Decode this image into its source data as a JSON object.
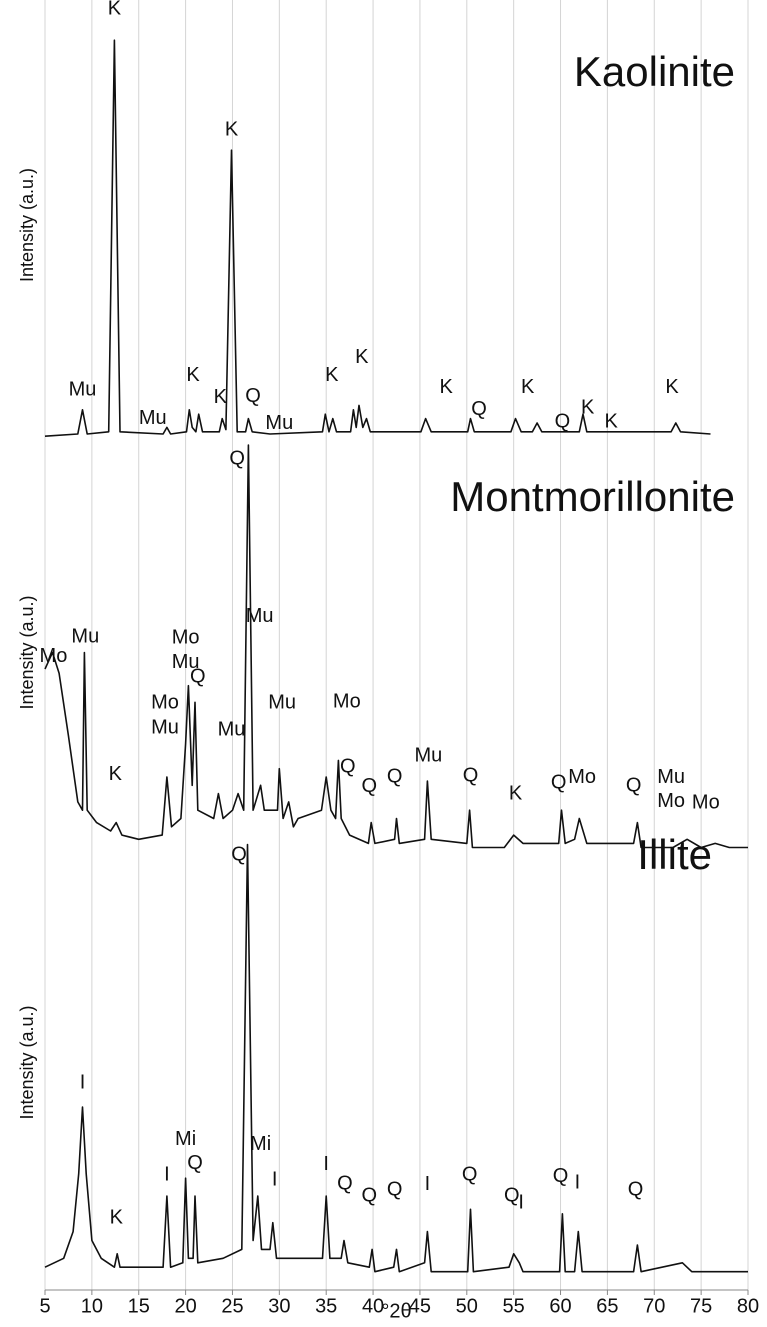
{
  "chart_data": [
    {
      "type": "line",
      "title": "Kaolinite",
      "ylabel": "Intensity (a.u.)",
      "color": "#111111",
      "xlim": [
        5,
        80
      ],
      "ylim": [
        0,
        100
      ],
      "x": [
        5,
        8.5,
        9,
        9.5,
        11.8,
        12.4,
        13,
        17.6,
        18,
        18.4,
        20.1,
        20.4,
        20.7,
        21.1,
        21.4,
        21.8,
        23.6,
        23.9,
        24.3,
        24.9,
        25.5,
        26.4,
        26.7,
        27.1,
        29,
        34.6,
        34.9,
        35.3,
        35.7,
        36.1,
        37.6,
        37.9,
        38.2,
        38.5,
        38.9,
        39.3,
        39.7,
        45.1,
        45.6,
        46.2,
        50.1,
        50.4,
        50.8,
        54.7,
        55.2,
        55.8,
        57,
        57.5,
        58,
        62,
        62.4,
        62.8,
        71.8,
        72.3,
        72.8,
        76
      ],
      "values": [
        2,
        2.5,
        8,
        2.5,
        3,
        92,
        3,
        2.5,
        4,
        2.5,
        3,
        8,
        4,
        3,
        7,
        3,
        3,
        6,
        3.5,
        67,
        3,
        3,
        6,
        3,
        2.5,
        3,
        7,
        3,
        6,
        3,
        3,
        8,
        4,
        9,
        4,
        6,
        3,
        3,
        6,
        3,
        3,
        6,
        3,
        3,
        6,
        3,
        3,
        5,
        3,
        3,
        7,
        3,
        3,
        5,
        3,
        2.5
      ],
      "annotations": [
        {
          "text": "K",
          "x": 12.4,
          "y": 99
        },
        {
          "text": "K",
          "x": 24.9,
          "y": 71.5
        },
        {
          "text": "Mu",
          "x": 9,
          "y": 12.5
        },
        {
          "text": "Mu",
          "x": 16.5,
          "y": 6
        },
        {
          "text": "K",
          "x": 20.8,
          "y": 15.7
        },
        {
          "text": "K",
          "x": 23.7,
          "y": 10.7
        },
        {
          "text": "Q",
          "x": 27.2,
          "y": 11
        },
        {
          "text": "Mu",
          "x": 30,
          "y": 4.8
        },
        {
          "text": "K",
          "x": 35.6,
          "y": 15.7
        },
        {
          "text": "K",
          "x": 38.8,
          "y": 19.8
        },
        {
          "text": "K",
          "x": 47.8,
          "y": 13
        },
        {
          "text": "Q",
          "x": 51.3,
          "y": 8
        },
        {
          "text": "K",
          "x": 56.5,
          "y": 13
        },
        {
          "text": "Q",
          "x": 60.2,
          "y": 5.2
        },
        {
          "text": "K",
          "x": 62.9,
          "y": 8.4
        },
        {
          "text": "K",
          "x": 65.4,
          "y": 5.2
        },
        {
          "text": "K",
          "x": 71.9,
          "y": 13
        }
      ]
    },
    {
      "type": "line",
      "title": "Montmorillonite",
      "ylabel": "Intensity (a.u.)",
      "color": "#111111",
      "xlim": [
        5,
        80
      ],
      "ylim": [
        0,
        100
      ],
      "x": [
        5,
        5.8,
        6.5,
        7.5,
        8.5,
        9,
        9.2,
        9.5,
        10.5,
        12,
        12.6,
        13.2,
        15,
        17.5,
        18,
        18.5,
        19.5,
        20,
        20.3,
        20.7,
        21,
        21.3,
        23,
        23.5,
        24,
        25,
        25.6,
        26.2,
        26.7,
        27.2,
        28,
        28.4,
        29.8,
        30,
        30.4,
        31,
        31.5,
        32,
        34.5,
        35,
        35.5,
        36,
        36.3,
        36.6,
        37.5,
        39.5,
        39.8,
        40.2,
        42.3,
        42.5,
        42.8,
        45.5,
        45.8,
        46.2,
        50,
        50.3,
        50.6,
        54,
        55,
        56,
        59.8,
        60.1,
        60.5,
        61.5,
        62,
        62.8,
        67.8,
        68.2,
        68.6,
        72,
        73.5,
        75,
        76.5,
        78,
        80
      ],
      "values": [
        46,
        50,
        45,
        30,
        14,
        12,
        50,
        12,
        9,
        7,
        9,
        6,
        5,
        6,
        20,
        8,
        10,
        28,
        42,
        18,
        38,
        12,
        10,
        16,
        10,
        12,
        16,
        12,
        100,
        12,
        18,
        12,
        12,
        22,
        10,
        14,
        8,
        10,
        12,
        20,
        12,
        10,
        24,
        10,
        6,
        4,
        9,
        4,
        5,
        10,
        4,
        5,
        19,
        5,
        4,
        12,
        3,
        3,
        6,
        4,
        4,
        12,
        4,
        5,
        10,
        4,
        4,
        9,
        3,
        3,
        5,
        3,
        4,
        3,
        3
      ],
      "annotations": [
        {
          "text": "Mo",
          "x": 5.9,
          "y": 49
        },
        {
          "text": "Mu",
          "x": 9.3,
          "y": 53.7
        },
        {
          "text": "K",
          "x": 12.5,
          "y": 20.5
        },
        {
          "text": "Mo",
          "x": 17.8,
          "y": 37.8
        },
        {
          "text": "Mu",
          "x": 17.8,
          "y": 31.8
        },
        {
          "text": "Mo",
          "x": 20,
          "y": 53.5
        },
        {
          "text": "Mu",
          "x": 20,
          "y": 47.5
        },
        {
          "text": "Q",
          "x": 21.3,
          "y": 44
        },
        {
          "text": "Mu",
          "x": 24.9,
          "y": 31.3
        },
        {
          "text": "Q",
          "x": 25.5,
          "y": 96.6
        },
        {
          "text": "Mu",
          "x": 27.9,
          "y": 58.6
        },
        {
          "text": "Mu",
          "x": 30.3,
          "y": 37.8
        },
        {
          "text": "Mo",
          "x": 37.2,
          "y": 38
        },
        {
          "text": "Q",
          "x": 37.3,
          "y": 22.4
        },
        {
          "text": "Q",
          "x": 39.6,
          "y": 17.6
        },
        {
          "text": "Q",
          "x": 42.3,
          "y": 20
        },
        {
          "text": "Mu",
          "x": 45.9,
          "y": 25
        },
        {
          "text": "Q",
          "x": 50.4,
          "y": 20.2
        },
        {
          "text": "K",
          "x": 55.2,
          "y": 15.9
        },
        {
          "text": "Q",
          "x": 59.8,
          "y": 18.5
        },
        {
          "text": "Mo",
          "x": 62.3,
          "y": 19.8
        },
        {
          "text": "Q",
          "x": 67.8,
          "y": 17.8
        },
        {
          "text": "Mu",
          "x": 71.8,
          "y": 19.8
        },
        {
          "text": "Mo",
          "x": 71.8,
          "y": 14
        },
        {
          "text": "Mo",
          "x": 75.5,
          "y": 13.7
        }
      ]
    },
    {
      "type": "line",
      "title": "Illite",
      "ylabel": "Intensity (a.u.)",
      "xlabel": "°2θ",
      "color": "#111111",
      "xlim": [
        5,
        80
      ],
      "ylim": [
        0,
        100
      ],
      "xticks": [
        5,
        10,
        15,
        20,
        25,
        30,
        35,
        40,
        45,
        50,
        55,
        60,
        65,
        70,
        75,
        80
      ],
      "grid": true,
      "x": [
        5,
        7,
        8,
        8.6,
        9,
        9.4,
        10,
        11,
        12.4,
        12.7,
        13,
        17.6,
        18,
        18.4,
        19.7,
        20,
        20.3,
        20.8,
        21,
        21.3,
        24,
        26,
        26.6,
        27.2,
        27.7,
        28.1,
        29,
        29.3,
        29.7,
        34.6,
        35,
        35.4,
        36.6,
        36.9,
        37.3,
        39.6,
        39.9,
        40.2,
        42.2,
        42.5,
        42.8,
        45.5,
        45.8,
        46.2,
        50.1,
        50.4,
        50.7,
        54.5,
        55,
        55.6,
        56,
        59.9,
        60.2,
        60.5,
        61.5,
        61.9,
        62.3,
        67.8,
        68.2,
        68.6,
        73,
        74,
        80
      ],
      "values": [
        4,
        6,
        12,
        25,
        40,
        25,
        10,
        6,
        4,
        7,
        4,
        4,
        20,
        4,
        5,
        24,
        6,
        6,
        20,
        5,
        6,
        8,
        99,
        10,
        20,
        8,
        8,
        14,
        6,
        6,
        20,
        6,
        6,
        10,
        5,
        4,
        8,
        3,
        4,
        8,
        3,
        5,
        12,
        3,
        3,
        17,
        3,
        4,
        7,
        5,
        3,
        3,
        16,
        3,
        3,
        12,
        3,
        3,
        9,
        3,
        5,
        3,
        3
      ],
      "annotations": [
        {
          "text": "I",
          "x": 9,
          "y": 45.4
        },
        {
          "text": "K",
          "x": 12.6,
          "y": 15
        },
        {
          "text": "I",
          "x": 18,
          "y": 24.7
        },
        {
          "text": "Mi",
          "x": 20,
          "y": 32.6
        },
        {
          "text": "Q",
          "x": 21,
          "y": 27.2
        },
        {
          "text": "Q",
          "x": 25.7,
          "y": 96.6
        },
        {
          "text": "Mi",
          "x": 28,
          "y": 31.5
        },
        {
          "text": "I",
          "x": 29.5,
          "y": 23.6
        },
        {
          "text": "I",
          "x": 35,
          "y": 27
        },
        {
          "text": "Q",
          "x": 37,
          "y": 22.7
        },
        {
          "text": "Q",
          "x": 39.6,
          "y": 20
        },
        {
          "text": "Q",
          "x": 42.3,
          "y": 21.3
        },
        {
          "text": "I",
          "x": 45.8,
          "y": 22.5
        },
        {
          "text": "Q",
          "x": 50.3,
          "y": 24.7
        },
        {
          "text": "Q",
          "x": 54.8,
          "y": 20
        },
        {
          "text": "I",
          "x": 55.8,
          "y": 18.4
        },
        {
          "text": "Q",
          "x": 60,
          "y": 24.3
        },
        {
          "text": "I",
          "x": 61.8,
          "y": 22.9
        },
        {
          "text": "Q",
          "x": 68,
          "y": 21.3
        }
      ]
    }
  ]
}
